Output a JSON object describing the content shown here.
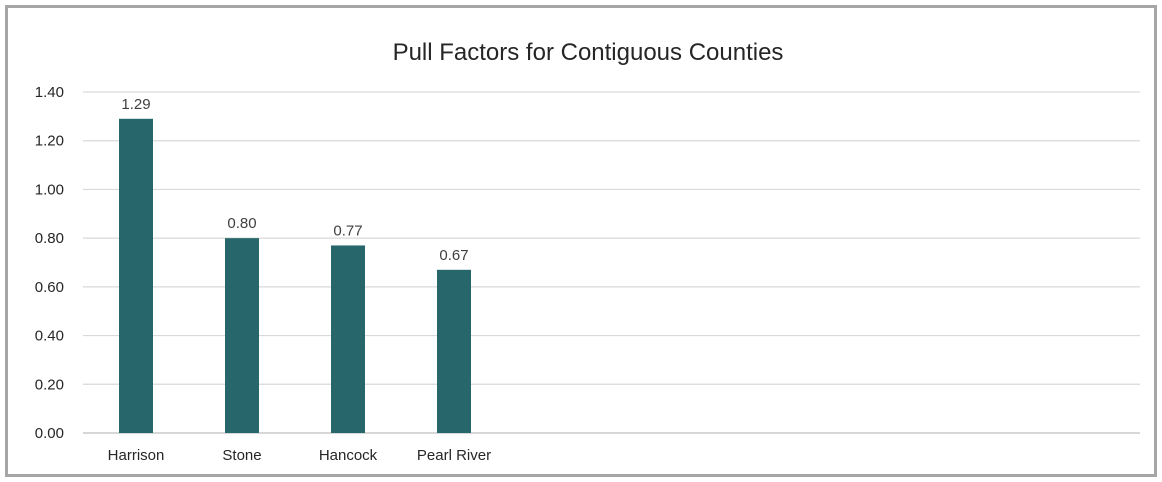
{
  "chart_data": {
    "type": "bar",
    "title": "Pull Factors for Contiguous Counties",
    "xlabel": "",
    "ylabel": "",
    "categories": [
      "Harrison",
      "Stone",
      "Hancock",
      "Pearl River"
    ],
    "values": [
      1.29,
      0.8,
      0.77,
      0.67
    ],
    "data_labels": [
      "1.29",
      "0.80",
      "0.77",
      "0.67"
    ],
    "ylim": [
      0,
      1.4
    ],
    "y_ticks": [
      0,
      0.2,
      0.4,
      0.6,
      0.8,
      1.0,
      1.2,
      1.4
    ],
    "y_tick_labels": [
      "0.00",
      "0.20",
      "0.40",
      "0.60",
      "0.80",
      "1.00",
      "1.20",
      "1.40"
    ],
    "grid": true,
    "legend": "none",
    "bar_color": "#27676b"
  }
}
